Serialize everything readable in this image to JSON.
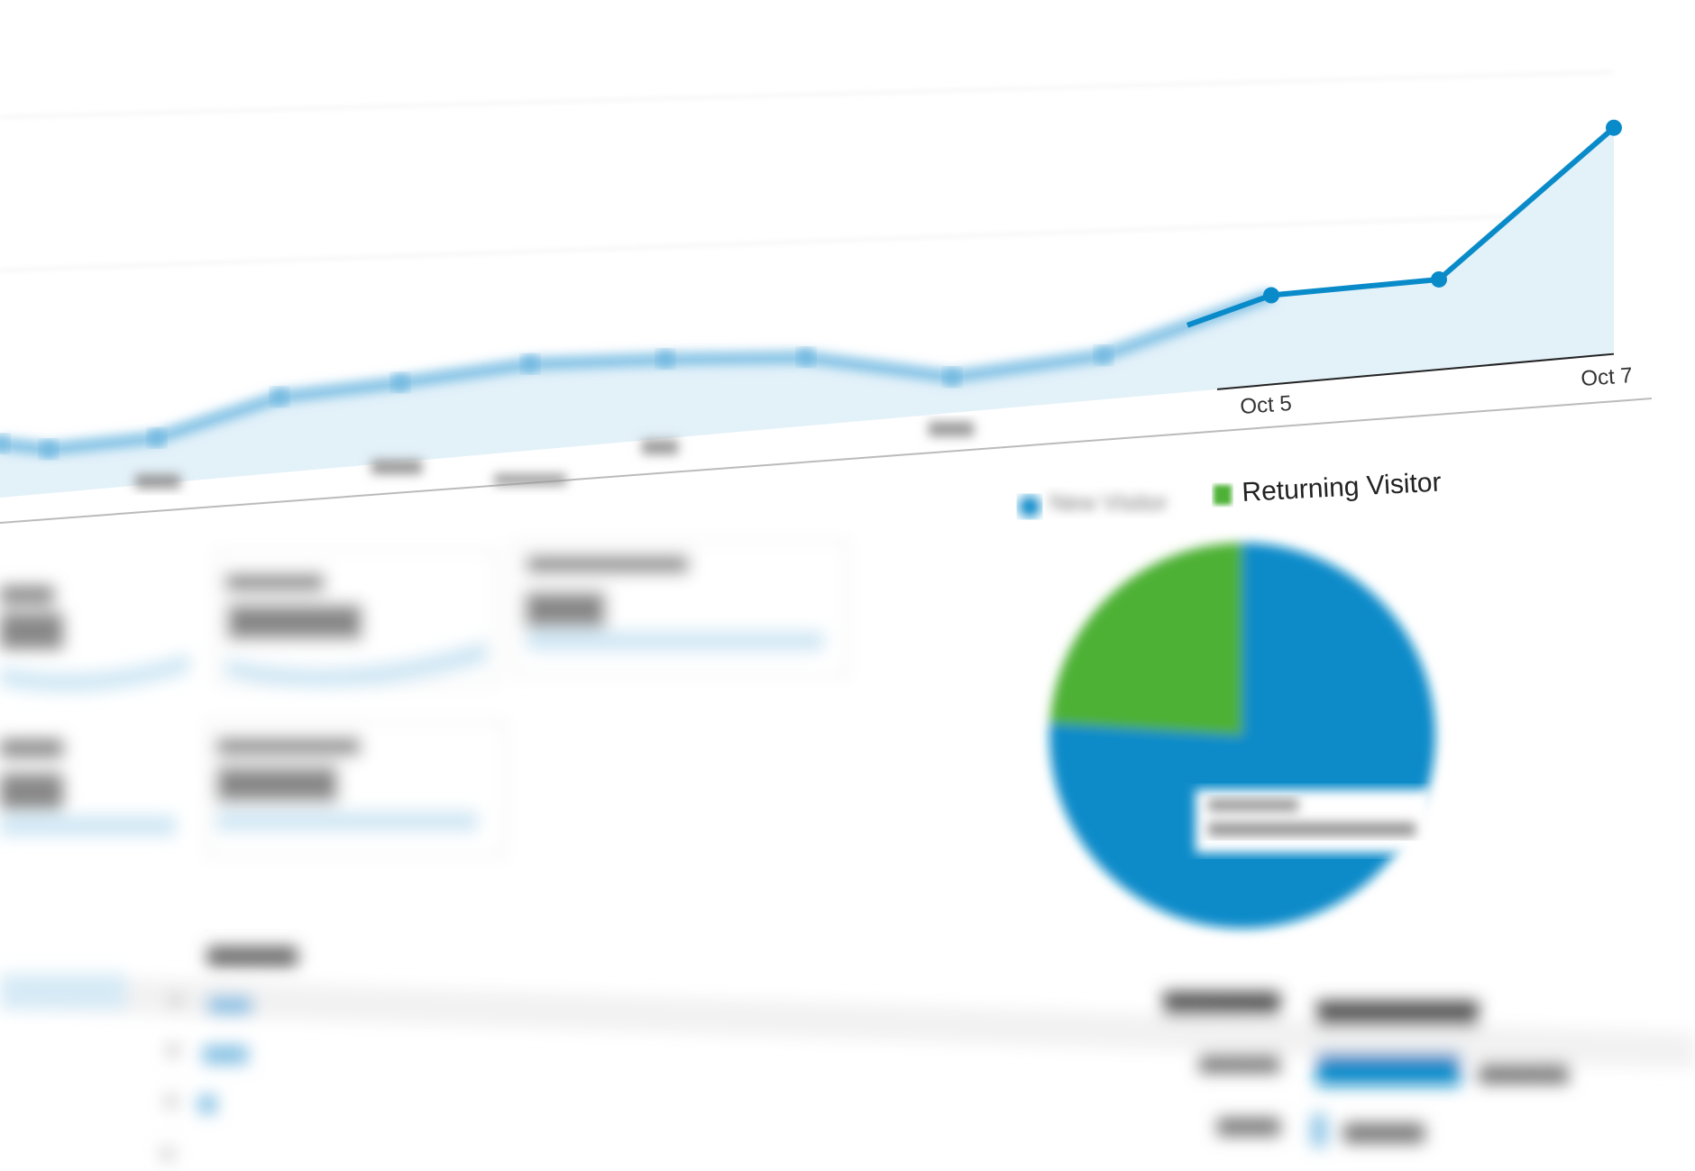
{
  "chart_data": [
    {
      "type": "area",
      "x_tick_labels": [
        "Oct 5",
        "Oct 7"
      ],
      "values": [
        60,
        49,
        51,
        84,
        88,
        96,
        88,
        76,
        40,
        49,
        99,
        100,
        251
      ],
      "labeled_points": {
        "Oct 5": 99,
        "Oct 7": 251
      },
      "grid": true,
      "colors": {
        "line": "#0a8bc9",
        "fill": "#e3f1f9"
      }
    },
    {
      "type": "pie",
      "legend": [
        "New Visitor",
        "Returning Visitor"
      ],
      "values": [
        76,
        24
      ],
      "colors": [
        "#0a8bc9",
        "#4db134"
      ],
      "legend_placement": "top"
    }
  ]
}
